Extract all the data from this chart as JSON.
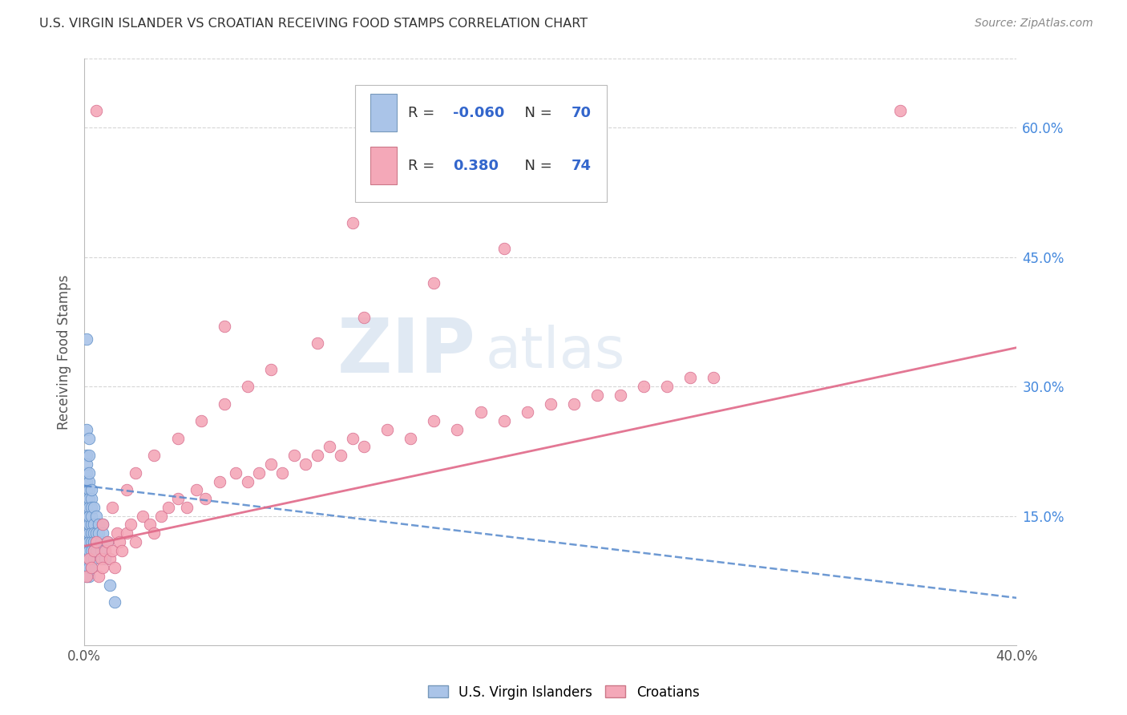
{
  "title": "U.S. VIRGIN ISLANDER VS CROATIAN RECEIVING FOOD STAMPS CORRELATION CHART",
  "source": "Source: ZipAtlas.com",
  "ylabel": "Receiving Food Stamps",
  "watermark_zip": "ZIP",
  "watermark_atlas": "atlas",
  "vi_color": "#aac4e8",
  "vi_edge_color": "#6090c8",
  "cr_color": "#f4a8b8",
  "cr_edge_color": "#d87090",
  "blue_line_color": "#5588cc",
  "pink_line_color": "#e06888",
  "grid_color": "#cccccc",
  "background_color": "#ffffff",
  "legend_vi_color": "#aac4e8",
  "legend_cr_color": "#f4a8b8",
  "legend_R1": "-0.060",
  "legend_N1": "70",
  "legend_R2": "0.380",
  "legend_N2": "74",
  "text_color": "#333333",
  "blue_label_color": "#3366cc",
  "right_tick_color": "#4488dd",
  "vi_x": [
    0.001,
    0.001,
    0.001,
    0.001,
    0.001,
    0.001,
    0.001,
    0.001,
    0.001,
    0.001,
    0.001,
    0.001,
    0.001,
    0.001,
    0.001,
    0.001,
    0.001,
    0.001,
    0.001,
    0.001,
    0.002,
    0.002,
    0.002,
    0.002,
    0.002,
    0.002,
    0.002,
    0.002,
    0.002,
    0.002,
    0.002,
    0.002,
    0.002,
    0.002,
    0.002,
    0.002,
    0.002,
    0.002,
    0.002,
    0.002,
    0.003,
    0.003,
    0.003,
    0.003,
    0.003,
    0.003,
    0.003,
    0.003,
    0.003,
    0.003,
    0.004,
    0.004,
    0.004,
    0.004,
    0.004,
    0.004,
    0.005,
    0.005,
    0.005,
    0.005,
    0.006,
    0.006,
    0.007,
    0.007,
    0.008,
    0.008,
    0.009,
    0.01,
    0.011,
    0.013
  ],
  "vi_y": [
    0.355,
    0.13,
    0.18,
    0.19,
    0.17,
    0.16,
    0.15,
    0.22,
    0.14,
    0.12,
    0.11,
    0.13,
    0.1,
    0.17,
    0.2,
    0.09,
    0.08,
    0.16,
    0.25,
    0.21,
    0.18,
    0.15,
    0.14,
    0.13,
    0.12,
    0.11,
    0.1,
    0.19,
    0.17,
    0.16,
    0.24,
    0.22,
    0.08,
    0.09,
    0.13,
    0.11,
    0.14,
    0.2,
    0.15,
    0.12,
    0.17,
    0.16,
    0.14,
    0.13,
    0.12,
    0.11,
    0.18,
    0.1,
    0.09,
    0.15,
    0.16,
    0.14,
    0.13,
    0.12,
    0.11,
    0.1,
    0.15,
    0.13,
    0.12,
    0.11,
    0.14,
    0.13,
    0.12,
    0.11,
    0.14,
    0.13,
    0.1,
    0.12,
    0.07,
    0.05
  ],
  "cr_x": [
    0.001,
    0.002,
    0.003,
    0.004,
    0.005,
    0.006,
    0.007,
    0.008,
    0.009,
    0.01,
    0.011,
    0.012,
    0.013,
    0.014,
    0.015,
    0.016,
    0.018,
    0.02,
    0.022,
    0.025,
    0.028,
    0.03,
    0.033,
    0.036,
    0.04,
    0.044,
    0.048,
    0.052,
    0.058,
    0.065,
    0.07,
    0.075,
    0.08,
    0.085,
    0.09,
    0.095,
    0.1,
    0.105,
    0.11,
    0.115,
    0.12,
    0.13,
    0.14,
    0.15,
    0.16,
    0.17,
    0.18,
    0.19,
    0.2,
    0.21,
    0.22,
    0.23,
    0.24,
    0.25,
    0.26,
    0.27,
    0.008,
    0.012,
    0.018,
    0.022,
    0.03,
    0.04,
    0.05,
    0.06,
    0.07,
    0.08,
    0.1,
    0.12,
    0.15,
    0.18,
    0.005,
    0.35,
    0.115,
    0.06
  ],
  "cr_y": [
    0.08,
    0.1,
    0.09,
    0.11,
    0.12,
    0.08,
    0.1,
    0.09,
    0.11,
    0.12,
    0.1,
    0.11,
    0.09,
    0.13,
    0.12,
    0.11,
    0.13,
    0.14,
    0.12,
    0.15,
    0.14,
    0.13,
    0.15,
    0.16,
    0.17,
    0.16,
    0.18,
    0.17,
    0.19,
    0.2,
    0.19,
    0.2,
    0.21,
    0.2,
    0.22,
    0.21,
    0.22,
    0.23,
    0.22,
    0.24,
    0.23,
    0.25,
    0.24,
    0.26,
    0.25,
    0.27,
    0.26,
    0.27,
    0.28,
    0.28,
    0.29,
    0.29,
    0.3,
    0.3,
    0.31,
    0.31,
    0.14,
    0.16,
    0.18,
    0.2,
    0.22,
    0.24,
    0.26,
    0.28,
    0.3,
    0.32,
    0.35,
    0.38,
    0.42,
    0.46,
    0.62,
    0.62,
    0.49,
    0.37
  ],
  "vi_line_x0": 0.0,
  "vi_line_x1": 0.4,
  "vi_line_y0": 0.185,
  "vi_line_y1": 0.055,
  "cr_line_x0": 0.0,
  "cr_line_x1": 0.4,
  "cr_line_y0": 0.115,
  "cr_line_y1": 0.345,
  "xlim": [
    0.0,
    0.4
  ],
  "ylim": [
    0.0,
    0.68
  ],
  "yticks": [
    0.0,
    0.15,
    0.3,
    0.45,
    0.6
  ],
  "ytick_labels": [
    "",
    "15.0%",
    "30.0%",
    "45.0%",
    "60.0%"
  ]
}
